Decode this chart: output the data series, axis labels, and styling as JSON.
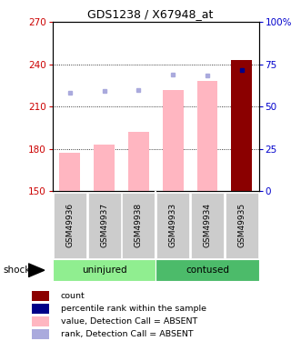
{
  "title": "GDS1238 / X67948_at",
  "samples": [
    "GSM49936",
    "GSM49937",
    "GSM49938",
    "GSM49933",
    "GSM49934",
    "GSM49935"
  ],
  "group_labels": [
    "uninjured",
    "contused"
  ],
  "group_colors": [
    "#90EE90",
    "#4CBB6A"
  ],
  "bar_values": [
    177,
    183,
    192,
    222,
    228,
    243
  ],
  "bar_color_absent": "#FFB6C1",
  "bar_color_present": "#8B0000",
  "rank_dots": [
    220,
    221,
    222,
    233,
    232,
    236
  ],
  "rank_dot_absent_color": "#AAAADD",
  "rank_dot_present_color": "#000088",
  "ylim_left": [
    150,
    270
  ],
  "ylim_right": [
    0,
    100
  ],
  "left_ticks": [
    150,
    180,
    210,
    240,
    270
  ],
  "right_ticks": [
    0,
    25,
    50,
    75,
    100
  ],
  "left_tick_color": "#CC0000",
  "right_tick_color": "#0000CC",
  "present_sample_idx": 5,
  "shock_label": "shock",
  "legend_items": [
    {
      "label": "count",
      "color": "#8B0000"
    },
    {
      "label": "percentile rank within the sample",
      "color": "#000088"
    },
    {
      "label": "value, Detection Call = ABSENT",
      "color": "#FFB6C1"
    },
    {
      "label": "rank, Detection Call = ABSENT",
      "color": "#AAAADD"
    }
  ],
  "sample_box_color": "#CCCCCC",
  "grid_dotted_values": [
    180,
    210,
    240
  ]
}
